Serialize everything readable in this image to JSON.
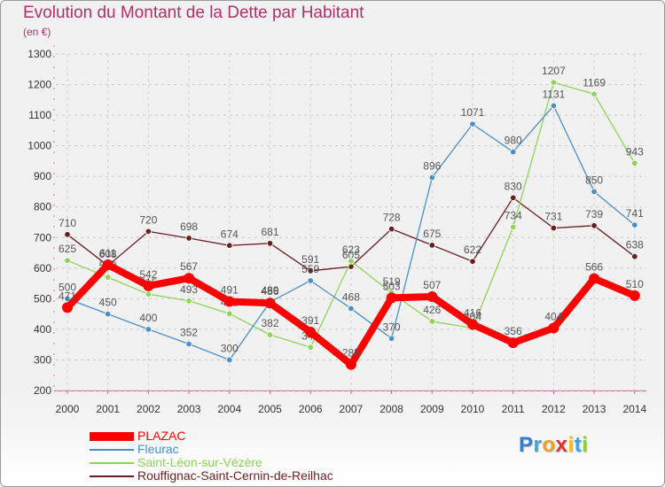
{
  "chart_data": {
    "type": "line",
    "title": "Evolution du Montant de la Dette par Habitant",
    "subtitle": "(en €)",
    "xlabel": "",
    "ylabel": "",
    "ylim": [
      200,
      1300
    ],
    "yticks": [
      200,
      300,
      400,
      500,
      600,
      700,
      800,
      900,
      1000,
      1100,
      1200,
      1300
    ],
    "x": [
      "2000",
      "2001",
      "2002",
      "2003",
      "2004",
      "2005",
      "2006",
      "2007",
      "2008",
      "2009",
      "2010",
      "2011",
      "2012",
      "2013",
      "2014"
    ],
    "legend_position": "bottom-left",
    "grid": true,
    "series": [
      {
        "name": "Rouffignac-Saint-Cernin-de-Reilhac",
        "color": "#6b1e22",
        "values": [
          710,
          608,
          720,
          698,
          674,
          681,
          591,
          605,
          728,
          675,
          622,
          830,
          731,
          739,
          638
        ]
      },
      {
        "name": "Saint-Léon-sur-Vézère",
        "color": "#8ed456",
        "values": [
          625,
          570,
          515,
          493,
          451,
          382,
          341,
          623,
          519,
          426,
          404,
          734,
          1207,
          1169,
          943
        ]
      },
      {
        "name": "Fleurac",
        "color": "#4a8fc9",
        "values": [
          500,
          450,
          400,
          352,
          300,
          489,
          559,
          468,
          370,
          896,
          1071,
          980,
          1131,
          850,
          741
        ]
      },
      {
        "name": "PLAZAC",
        "color": "#ff0000",
        "values": [
          471,
          611,
          542,
          567,
          491,
          486,
          391,
          285,
          503,
          507,
          416,
          356,
          404,
          566,
          510
        ]
      }
    ]
  },
  "legend": {
    "items": [
      {
        "label": "PLAZAC",
        "color": "#ff0000"
      },
      {
        "label": "Fleurac",
        "color": "#4a8fc9"
      },
      {
        "label": "Saint-Léon-sur-Vézère",
        "color": "#8ed456"
      },
      {
        "label": "Rouffignac-Saint-Cernin-de-Reilhac",
        "color": "#6b1e22"
      }
    ]
  },
  "brand": {
    "letters": [
      "P",
      "r",
      "o",
      "x",
      "i",
      "t",
      "i"
    ],
    "colors": [
      "#2f7fd6",
      "#3aa2e8",
      "#f0a020",
      "#e03030",
      "#f7c11b",
      "#3aa2e8",
      "#8ecf3d"
    ]
  }
}
